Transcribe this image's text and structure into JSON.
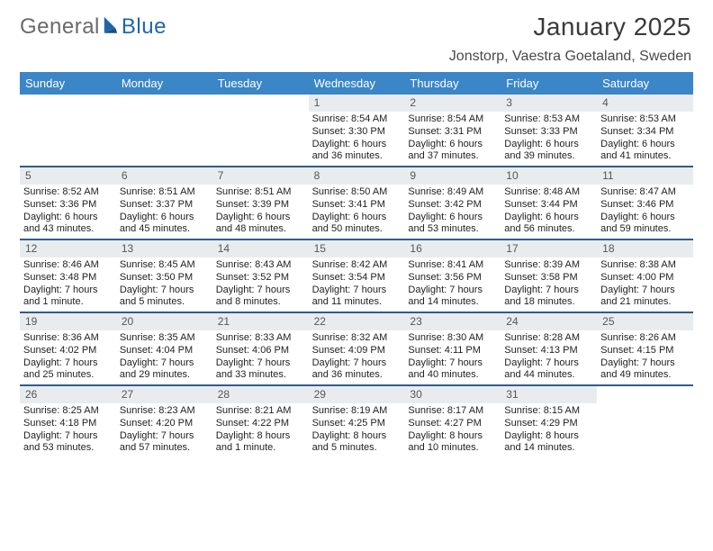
{
  "logo": {
    "part1": "General",
    "part2": "Blue"
  },
  "title": "January 2025",
  "location": "Jonstorp, Vaestra Goetaland, Sweden",
  "colors": {
    "header_blue": "#3b86c6",
    "rule": "#2e5f8a",
    "daynum_bg": "#e9ecef",
    "page_bg": "#ffffff"
  },
  "dow": [
    "Sunday",
    "Monday",
    "Tuesday",
    "Wednesday",
    "Thursday",
    "Friday",
    "Saturday"
  ],
  "weeks": [
    [
      {
        "n": "",
        "blank": true
      },
      {
        "n": "",
        "blank": true
      },
      {
        "n": "",
        "blank": true
      },
      {
        "n": "1",
        "sr": "Sunrise: 8:54 AM",
        "ss": "Sunset: 3:30 PM",
        "dl1": "Daylight: 6 hours",
        "dl2": "and 36 minutes."
      },
      {
        "n": "2",
        "sr": "Sunrise: 8:54 AM",
        "ss": "Sunset: 3:31 PM",
        "dl1": "Daylight: 6 hours",
        "dl2": "and 37 minutes."
      },
      {
        "n": "3",
        "sr": "Sunrise: 8:53 AM",
        "ss": "Sunset: 3:33 PM",
        "dl1": "Daylight: 6 hours",
        "dl2": "and 39 minutes."
      },
      {
        "n": "4",
        "sr": "Sunrise: 8:53 AM",
        "ss": "Sunset: 3:34 PM",
        "dl1": "Daylight: 6 hours",
        "dl2": "and 41 minutes."
      }
    ],
    [
      {
        "n": "5",
        "sr": "Sunrise: 8:52 AM",
        "ss": "Sunset: 3:36 PM",
        "dl1": "Daylight: 6 hours",
        "dl2": "and 43 minutes."
      },
      {
        "n": "6",
        "sr": "Sunrise: 8:51 AM",
        "ss": "Sunset: 3:37 PM",
        "dl1": "Daylight: 6 hours",
        "dl2": "and 45 minutes."
      },
      {
        "n": "7",
        "sr": "Sunrise: 8:51 AM",
        "ss": "Sunset: 3:39 PM",
        "dl1": "Daylight: 6 hours",
        "dl2": "and 48 minutes."
      },
      {
        "n": "8",
        "sr": "Sunrise: 8:50 AM",
        "ss": "Sunset: 3:41 PM",
        "dl1": "Daylight: 6 hours",
        "dl2": "and 50 minutes."
      },
      {
        "n": "9",
        "sr": "Sunrise: 8:49 AM",
        "ss": "Sunset: 3:42 PM",
        "dl1": "Daylight: 6 hours",
        "dl2": "and 53 minutes."
      },
      {
        "n": "10",
        "sr": "Sunrise: 8:48 AM",
        "ss": "Sunset: 3:44 PM",
        "dl1": "Daylight: 6 hours",
        "dl2": "and 56 minutes."
      },
      {
        "n": "11",
        "sr": "Sunrise: 8:47 AM",
        "ss": "Sunset: 3:46 PM",
        "dl1": "Daylight: 6 hours",
        "dl2": "and 59 minutes."
      }
    ],
    [
      {
        "n": "12",
        "sr": "Sunrise: 8:46 AM",
        "ss": "Sunset: 3:48 PM",
        "dl1": "Daylight: 7 hours",
        "dl2": "and 1 minute."
      },
      {
        "n": "13",
        "sr": "Sunrise: 8:45 AM",
        "ss": "Sunset: 3:50 PM",
        "dl1": "Daylight: 7 hours",
        "dl2": "and 5 minutes."
      },
      {
        "n": "14",
        "sr": "Sunrise: 8:43 AM",
        "ss": "Sunset: 3:52 PM",
        "dl1": "Daylight: 7 hours",
        "dl2": "and 8 minutes."
      },
      {
        "n": "15",
        "sr": "Sunrise: 8:42 AM",
        "ss": "Sunset: 3:54 PM",
        "dl1": "Daylight: 7 hours",
        "dl2": "and 11 minutes."
      },
      {
        "n": "16",
        "sr": "Sunrise: 8:41 AM",
        "ss": "Sunset: 3:56 PM",
        "dl1": "Daylight: 7 hours",
        "dl2": "and 14 minutes."
      },
      {
        "n": "17",
        "sr": "Sunrise: 8:39 AM",
        "ss": "Sunset: 3:58 PM",
        "dl1": "Daylight: 7 hours",
        "dl2": "and 18 minutes."
      },
      {
        "n": "18",
        "sr": "Sunrise: 8:38 AM",
        "ss": "Sunset: 4:00 PM",
        "dl1": "Daylight: 7 hours",
        "dl2": "and 21 minutes."
      }
    ],
    [
      {
        "n": "19",
        "sr": "Sunrise: 8:36 AM",
        "ss": "Sunset: 4:02 PM",
        "dl1": "Daylight: 7 hours",
        "dl2": "and 25 minutes."
      },
      {
        "n": "20",
        "sr": "Sunrise: 8:35 AM",
        "ss": "Sunset: 4:04 PM",
        "dl1": "Daylight: 7 hours",
        "dl2": "and 29 minutes."
      },
      {
        "n": "21",
        "sr": "Sunrise: 8:33 AM",
        "ss": "Sunset: 4:06 PM",
        "dl1": "Daylight: 7 hours",
        "dl2": "and 33 minutes."
      },
      {
        "n": "22",
        "sr": "Sunrise: 8:32 AM",
        "ss": "Sunset: 4:09 PM",
        "dl1": "Daylight: 7 hours",
        "dl2": "and 36 minutes."
      },
      {
        "n": "23",
        "sr": "Sunrise: 8:30 AM",
        "ss": "Sunset: 4:11 PM",
        "dl1": "Daylight: 7 hours",
        "dl2": "and 40 minutes."
      },
      {
        "n": "24",
        "sr": "Sunrise: 8:28 AM",
        "ss": "Sunset: 4:13 PM",
        "dl1": "Daylight: 7 hours",
        "dl2": "and 44 minutes."
      },
      {
        "n": "25",
        "sr": "Sunrise: 8:26 AM",
        "ss": "Sunset: 4:15 PM",
        "dl1": "Daylight: 7 hours",
        "dl2": "and 49 minutes."
      }
    ],
    [
      {
        "n": "26",
        "sr": "Sunrise: 8:25 AM",
        "ss": "Sunset: 4:18 PM",
        "dl1": "Daylight: 7 hours",
        "dl2": "and 53 minutes."
      },
      {
        "n": "27",
        "sr": "Sunrise: 8:23 AM",
        "ss": "Sunset: 4:20 PM",
        "dl1": "Daylight: 7 hours",
        "dl2": "and 57 minutes."
      },
      {
        "n": "28",
        "sr": "Sunrise: 8:21 AM",
        "ss": "Sunset: 4:22 PM",
        "dl1": "Daylight: 8 hours",
        "dl2": "and 1 minute."
      },
      {
        "n": "29",
        "sr": "Sunrise: 8:19 AM",
        "ss": "Sunset: 4:25 PM",
        "dl1": "Daylight: 8 hours",
        "dl2": "and 5 minutes."
      },
      {
        "n": "30",
        "sr": "Sunrise: 8:17 AM",
        "ss": "Sunset: 4:27 PM",
        "dl1": "Daylight: 8 hours",
        "dl2": "and 10 minutes."
      },
      {
        "n": "31",
        "sr": "Sunrise: 8:15 AM",
        "ss": "Sunset: 4:29 PM",
        "dl1": "Daylight: 8 hours",
        "dl2": "and 14 minutes."
      },
      {
        "n": "",
        "blank": true
      }
    ]
  ]
}
